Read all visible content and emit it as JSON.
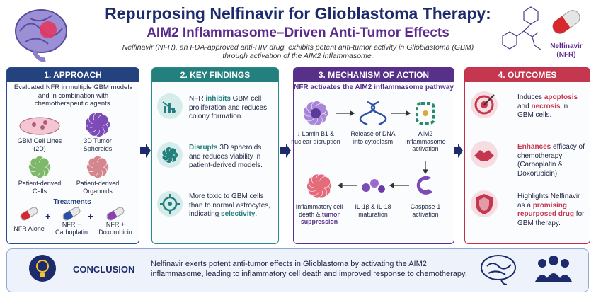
{
  "header": {
    "title": "Repurposing Nelfinavir for Glioblastoma Therapy:",
    "subtitle": "AIM2 Inflammasome–Driven Anti-Tumor Effects",
    "description": [
      "Nelfinavir (NFR), an FDA-approved anti-HIV drug, exhibits potent anti-tumor activity in Glioblastoma (GBM)",
      "through activation of the AIM2 inflammasome."
    ],
    "drug_label": [
      "Nelfinavir",
      "(NFR)"
    ]
  },
  "approach": {
    "title": "1. APPROACH",
    "intro": "Evaluated NFR in multiple GBM models and in combination with chemotherapeutic agents.",
    "models": [
      "GBM Cell Lines (2D)",
      "3D Tumor Spheroids",
      "Patient-derived Cells",
      "Patient-derived Organoids"
    ],
    "treatments_title": "Treatments",
    "treatments": [
      "NFR Alone",
      "NFR + Carboplatin",
      "NFR + Doxorubicin"
    ]
  },
  "findings": {
    "title": "2. KEY FINDINGS",
    "items": [
      [
        {
          "text": "NFR "
        },
        {
          "text": "inhibits",
          "strong": true
        },
        {
          "text": " GBM cell proliferation and reduces colony formation."
        }
      ],
      [
        {
          "text": "Disrupts",
          "strong": true
        },
        {
          "text": " 3D spheroids and reduces viability in patient-derived models."
        }
      ],
      [
        {
          "text": "More toxic to GBM cells than to normal astrocytes, indicating "
        },
        {
          "text": "selectivity",
          "strong": true
        },
        {
          "text": "."
        }
      ]
    ]
  },
  "mechanism": {
    "title": "3. MECHANISM OF ACTION",
    "subtitle": "NFR activates the AIM2 inflammasome pathway",
    "steps": [
      [
        {
          "text": "↓ Lamin B1 & nuclear disruption"
        }
      ],
      [
        {
          "text": "Release of DNA into cytoplasm"
        }
      ],
      [
        {
          "text": "AIM2 inflammasome activation"
        }
      ],
      [
        {
          "text": "Caspase-1 activation"
        }
      ],
      [
        {
          "text": "IL-1β & IL-18 maturation"
        }
      ],
      [
        {
          "text": "Inflammatory cell death & "
        },
        {
          "text": "tumor suppression",
          "strong": true
        }
      ]
    ]
  },
  "outcomes": {
    "title": "4. OUTCOMES",
    "items": [
      [
        {
          "text": "Induces "
        },
        {
          "text": "apoptosis",
          "strong": true
        },
        {
          "text": " and "
        },
        {
          "text": "necrosis",
          "strong": true
        },
        {
          "text": " in GBM cells."
        }
      ],
      [
        {
          "text": "Enhances",
          "strong": true
        },
        {
          "text": " efficacy of chemotherapy (Carboplatin & Doxorubicin)."
        }
      ],
      [
        {
          "text": "Highlights Nelfinavir as a "
        },
        {
          "text": "promising repurposed drug",
          "strong": true
        },
        {
          "text": " for GBM therapy."
        }
      ]
    ]
  },
  "conclusion": {
    "label": "CONCLUSION",
    "text": "Nelfinavir exerts potent anti-tumor effects in Glioblastoma by activating the AIM2 inflammasome, leading to inflammatory cell death and improved response to chemotherapy."
  }
}
